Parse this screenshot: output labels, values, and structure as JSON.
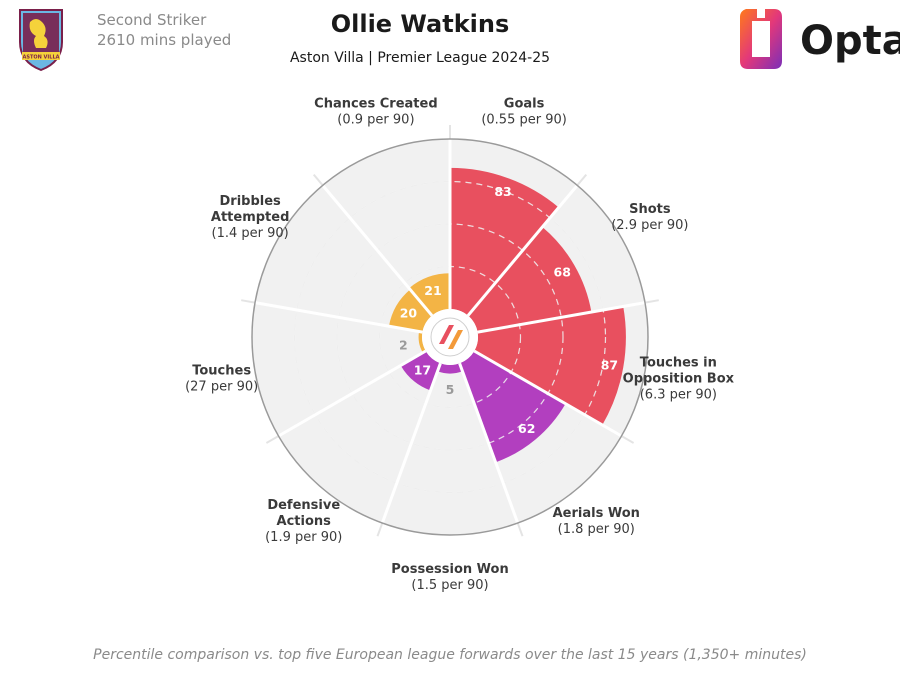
{
  "header": {
    "position": "Second Striker",
    "minutes": "2610 mins played",
    "player": "Ollie Watkins",
    "team_league": "Aston Villa | Premier League 2024-25",
    "club_badge_text": "ASTON VILLA",
    "brand": "Opta"
  },
  "footer": {
    "note": "Percentile comparison vs. top five European league forwards over the last 15 years (1,350+ minutes)"
  },
  "colors": {
    "attack": "#e8505f",
    "possession": "#f3b445",
    "defense": "#b23fbf",
    "ring": "#9a9a9a",
    "background_circle": "#f1f1f1",
    "spoke": "#ffffff"
  },
  "chart_data": {
    "type": "polar-bar",
    "title": "Ollie Watkins",
    "subtitle": "Aston Villa | Premier League 2024-25",
    "rlim": [
      0,
      100
    ],
    "metrics": [
      {
        "label": "Goals",
        "sub": "(0.55 per 90)",
        "value": 83,
        "group": "attack"
      },
      {
        "label": "Shots",
        "sub": "(2.9 per 90)",
        "value": 68,
        "group": "attack"
      },
      {
        "label": "Touches in Opposition Box",
        "sub": "(6.3 per 90)",
        "value": 87,
        "group": "attack"
      },
      {
        "label": "Aerials Won",
        "sub": "(1.8 per 90)",
        "value": 62,
        "group": "defense"
      },
      {
        "label": "Possession Won",
        "sub": "(1.5 per 90)",
        "value": 5,
        "group": "defense"
      },
      {
        "label": "Defensive Actions",
        "sub": "(1.9 per 90)",
        "value": 17,
        "group": "defense"
      },
      {
        "label": "Touches",
        "sub": "(27 per 90)",
        "value": 2,
        "group": "possession"
      },
      {
        "label": "Dribbles Attempted",
        "sub": "(1.4 per 90)",
        "value": 20,
        "group": "possession"
      },
      {
        "label": "Chances Created",
        "sub": "(0.9 per 90)",
        "value": 21,
        "group": "possession"
      }
    ]
  }
}
